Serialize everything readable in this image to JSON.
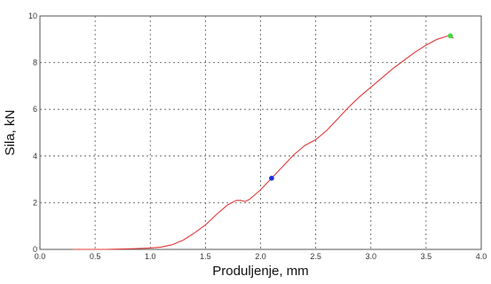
{
  "chart_data": {
    "type": "line",
    "xlabel": "Produljenje, mm",
    "ylabel": "Sila, kN",
    "xlim": [
      0,
      4
    ],
    "ylim": [
      0,
      10
    ],
    "xticks": [
      "0.0",
      "0.5",
      "1.0",
      "1.5",
      "2.0",
      "2.5",
      "3.0",
      "3.5",
      "4.0"
    ],
    "yticks": [
      "0",
      "2",
      "4",
      "6",
      "8",
      "10"
    ],
    "grid": true,
    "line_color": "#e03a3a",
    "series": [
      {
        "x": [
          0.3,
          0.6,
          0.85,
          1.0,
          1.1,
          1.2,
          1.3,
          1.4,
          1.5,
          1.6,
          1.7,
          1.78,
          1.82,
          1.86,
          1.9,
          2.0,
          2.1,
          2.2,
          2.3,
          2.4,
          2.5,
          2.6,
          2.7,
          2.8,
          2.9,
          3.0,
          3.1,
          3.2,
          3.3,
          3.4,
          3.5,
          3.6,
          3.7,
          3.75
        ],
        "y": [
          0.0,
          0.0,
          0.03,
          0.06,
          0.1,
          0.2,
          0.4,
          0.7,
          1.05,
          1.5,
          1.9,
          2.1,
          2.1,
          2.05,
          2.15,
          2.55,
          3.05,
          3.55,
          4.05,
          4.45,
          4.7,
          5.1,
          5.6,
          6.1,
          6.55,
          6.95,
          7.35,
          7.75,
          8.1,
          8.45,
          8.75,
          9.0,
          9.15,
          9.05
        ]
      }
    ],
    "markers": [
      {
        "x": 2.1,
        "y": 3.05,
        "color": "#1f2fd6"
      },
      {
        "x": 3.72,
        "y": 9.15,
        "color": "#3ddc3d"
      }
    ]
  }
}
